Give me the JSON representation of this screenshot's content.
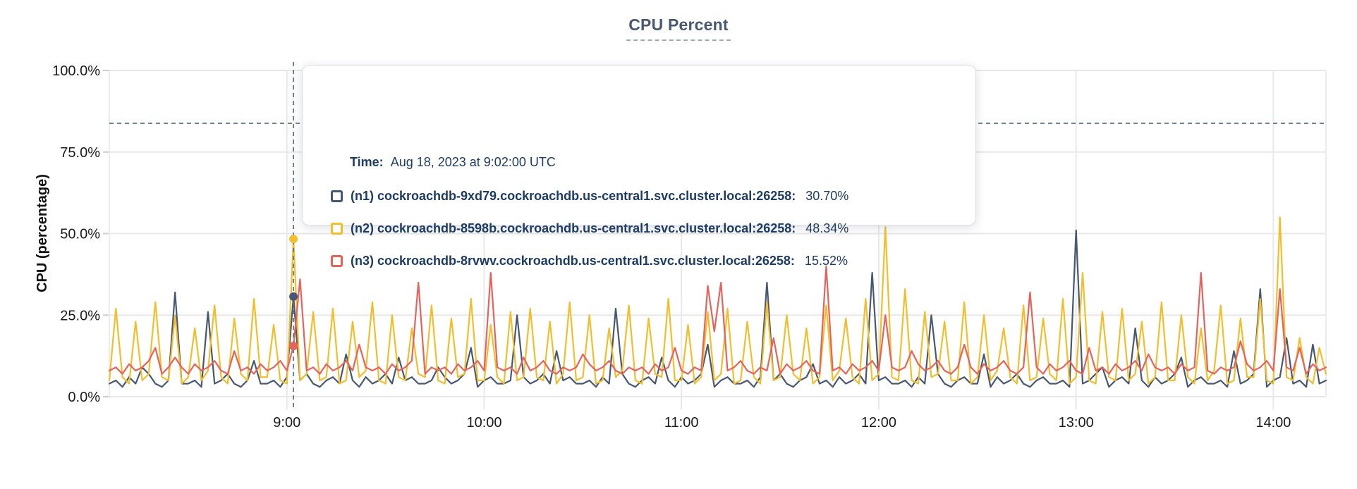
{
  "chart": {
    "title": "CPU Percent",
    "ylabel": "CPU (percentage)"
  },
  "tooltip": {
    "time_label": "Time:",
    "time_value": "Aug 18, 2023 at 9:02:00 UTC",
    "rows": [
      {
        "label": "(n1) cockroachdb-9xd79.cockroachdb.us-central1.svc.cluster.local:26258:",
        "value": "30.70%"
      },
      {
        "label": "(n2) cockroachdb-8598b.cockroachdb.us-central1.svc.cluster.local:26258:",
        "value": "48.34%"
      },
      {
        "label": "(n3) cockroachdb-8rvwv.cockroachdb.us-central1.svc.cluster.local:26258:",
        "value": "15.52%"
      }
    ]
  },
  "chart_data": {
    "type": "line",
    "title": "CPU Percent",
    "xlabel": "",
    "ylabel": "CPU (percentage)",
    "ylim": [
      0,
      100
    ],
    "grid": true,
    "legend_position": "tooltip",
    "y_ticks": [
      {
        "v": 0,
        "label": "0.0%"
      },
      {
        "v": 25,
        "label": "25.0%"
      },
      {
        "v": 50,
        "label": "50.0%"
      },
      {
        "v": 75,
        "label": "75.0%"
      },
      {
        "v": 100,
        "label": "100.0%"
      }
    ],
    "x_range": [
      486,
      856
    ],
    "x_minutes": {
      "start": 486,
      "step": 2,
      "count": 186
    },
    "x_ticks": [
      {
        "t": 540,
        "label": "9:00"
      },
      {
        "t": 600,
        "label": "10:00"
      },
      {
        "t": 660,
        "label": "11:00"
      },
      {
        "t": 720,
        "label": "12:00"
      },
      {
        "t": 780,
        "label": "13:00"
      },
      {
        "t": 840,
        "label": "14:00"
      }
    ],
    "crosshair": {
      "t": 542,
      "time": "Aug 18, 2023 at 9:02:00 UTC",
      "hline_value": 83.8,
      "points": [
        {
          "series": "n1",
          "value": 30.7
        },
        {
          "series": "n2",
          "value": 48.34
        },
        {
          "series": "n3",
          "value": 15.52
        }
      ]
    },
    "series": [
      {
        "id": "n1",
        "name": "(n1) cockroachdb-9xd79.cockroachdb.us-central1.svc.cluster.local:26258",
        "color": "#475872",
        "values": [
          4,
          5,
          3,
          6,
          4,
          9,
          7,
          4,
          3,
          5,
          32,
          4,
          4,
          5,
          3,
          26,
          4,
          5,
          7,
          4,
          3,
          5,
          11,
          4,
          4,
          5,
          3,
          6,
          30.7,
          5,
          7,
          4,
          3,
          5,
          6,
          4,
          13,
          5,
          3,
          6,
          4,
          5,
          7,
          4,
          12,
          5,
          6,
          4,
          4,
          5,
          9,
          6,
          4,
          5,
          7,
          15,
          3,
          5,
          6,
          4,
          4,
          5,
          25,
          6,
          4,
          5,
          7,
          4,
          14,
          5,
          6,
          4,
          4,
          5,
          3,
          6,
          4,
          27,
          7,
          4,
          3,
          5,
          6,
          4,
          12,
          5,
          3,
          6,
          4,
          5,
          7,
          16,
          3,
          5,
          6,
          4,
          4,
          5,
          3,
          6,
          35,
          5,
          7,
          4,
          3,
          5,
          6,
          10,
          4,
          5,
          3,
          6,
          4,
          5,
          7,
          4,
          38,
          5,
          6,
          4,
          4,
          5,
          3,
          6,
          4,
          25,
          7,
          4,
          3,
          5,
          6,
          4,
          4,
          13,
          3,
          6,
          4,
          5,
          7,
          4,
          3,
          5,
          6,
          4,
          4,
          5,
          3,
          51,
          4,
          5,
          7,
          9,
          3,
          5,
          6,
          4,
          21,
          5,
          3,
          6,
          4,
          5,
          7,
          12,
          3,
          5,
          6,
          4,
          4,
          5,
          3,
          14,
          4,
          5,
          7,
          33,
          3,
          5,
          6,
          18,
          4,
          5,
          3,
          16,
          4,
          5
        ]
      },
      {
        "id": "n2",
        "name": "(n2) cockroachdb-8598b.cockroachdb.us-central1.svc.cluster.local:26258",
        "color": "#f2be2b",
        "values": [
          5,
          27,
          6,
          4,
          23,
          5,
          7,
          29,
          6,
          5,
          25,
          4,
          6,
          21,
          5,
          8,
          28,
          6,
          4,
          24,
          7,
          5,
          30,
          6,
          6,
          22,
          5,
          4,
          48.34,
          5,
          7,
          26,
          5,
          6,
          27,
          4,
          5,
          23,
          6,
          8,
          29,
          5,
          4,
          25,
          6,
          5,
          21,
          7,
          6,
          28,
          5,
          4,
          24,
          6,
          7,
          30,
          5,
          5,
          22,
          6,
          4,
          26,
          5,
          6,
          27,
          6,
          5,
          23,
          4,
          7,
          29,
          5,
          6,
          25,
          4,
          5,
          21,
          6,
          8,
          28,
          5,
          4,
          24,
          7,
          6,
          30,
          5,
          5,
          22,
          4,
          6,
          26,
          5,
          7,
          27,
          4,
          5,
          23,
          6,
          4,
          29,
          5,
          6,
          25,
          7,
          5,
          21,
          4,
          6,
          28,
          5,
          8,
          24,
          6,
          4,
          30,
          5,
          7,
          52,
          6,
          5,
          33,
          5,
          4,
          26,
          6,
          7,
          23,
          5,
          5,
          29,
          4,
          6,
          25,
          5,
          8,
          21,
          6,
          4,
          28,
          5,
          6,
          24,
          7,
          5,
          30,
          4,
          6,
          38,
          5,
          4,
          26,
          6,
          5,
          27,
          5,
          7,
          23,
          4,
          6,
          29,
          5,
          5,
          25,
          6,
          4,
          21,
          5,
          8,
          28,
          4,
          5,
          24,
          6,
          6,
          30,
          5,
          4,
          55,
          6,
          5,
          18,
          6,
          4,
          15,
          7
        ]
      },
      {
        "id": "n3",
        "name": "(n3) cockroachdb-8rvwv.cockroachdb.us-central1.svc.cluster.local:26258",
        "color": "#e5635c",
        "values": [
          8,
          9,
          7,
          10,
          8,
          9,
          11,
          15,
          7,
          9,
          12,
          9,
          7,
          10,
          8,
          9,
          11,
          8,
          7,
          14,
          8,
          9,
          7,
          10,
          8,
          9,
          11,
          8,
          15.52,
          36,
          8,
          9,
          7,
          10,
          8,
          9,
          11,
          8,
          16,
          9,
          8,
          9,
          7,
          10,
          8,
          9,
          11,
          35,
          7,
          9,
          8,
          9,
          7,
          10,
          8,
          9,
          11,
          8,
          38,
          9,
          8,
          9,
          7,
          12,
          8,
          9,
          11,
          8,
          7,
          9,
          8,
          9,
          13,
          10,
          8,
          9,
          11,
          8,
          7,
          9,
          8,
          9,
          7,
          10,
          8,
          9,
          15,
          8,
          7,
          9,
          8,
          34,
          20,
          35,
          8,
          9,
          11,
          8,
          7,
          9,
          8,
          18,
          7,
          10,
          8,
          9,
          11,
          8,
          7,
          40,
          8,
          9,
          7,
          10,
          8,
          9,
          11,
          8,
          25,
          9,
          8,
          9,
          14,
          10,
          8,
          9,
          11,
          8,
          7,
          9,
          16,
          9,
          7,
          10,
          8,
          9,
          11,
          8,
          7,
          9,
          32,
          9,
          7,
          10,
          8,
          9,
          11,
          8,
          7,
          15,
          8,
          9,
          7,
          10,
          8,
          9,
          11,
          8,
          13,
          9,
          8,
          9,
          7,
          10,
          8,
          9,
          38,
          8,
          7,
          9,
          8,
          9,
          17,
          10,
          8,
          9,
          11,
          8,
          33,
          9,
          8,
          15,
          7,
          10,
          8,
          9
        ]
      }
    ]
  }
}
